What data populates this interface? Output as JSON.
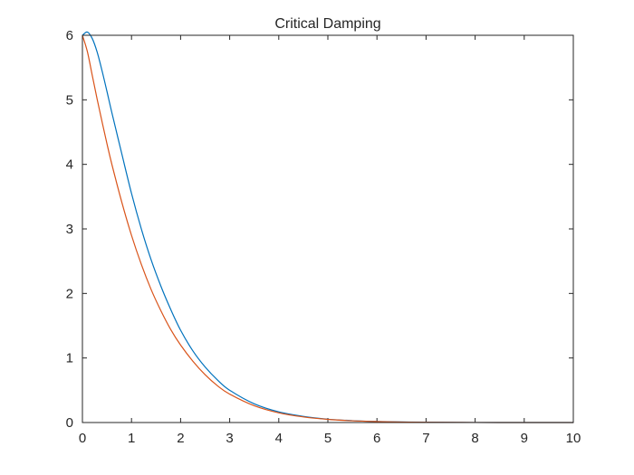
{
  "chart_data": {
    "type": "line",
    "title": "Critical Damping",
    "xlabel": "",
    "ylabel": "",
    "xlim": [
      0,
      10
    ],
    "ylim": [
      0,
      6
    ],
    "xticks": [
      "0",
      "1",
      "2",
      "3",
      "4",
      "5",
      "6",
      "7",
      "8",
      "9",
      "10"
    ],
    "yticks": [
      "0",
      "1",
      "2",
      "3",
      "4",
      "5",
      "6"
    ],
    "grid": false,
    "legend": "none",
    "series": [
      {
        "color": "#0072BD",
        "x": [
          0,
          0.1,
          0.2,
          0.3,
          0.4,
          0.5,
          0.6,
          0.8,
          1.0,
          1.2,
          1.4,
          1.6,
          1.8,
          2.0,
          2.25,
          2.5,
          2.75,
          3.0,
          3.5,
          4.0,
          4.5,
          5.0,
          5.5,
          6.0,
          6.5,
          7.0,
          8.0,
          9.0,
          10.0
        ],
        "y": [
          6.0,
          6.05,
          5.95,
          5.74,
          5.45,
          5.13,
          4.8,
          4.17,
          3.55,
          3.0,
          2.52,
          2.11,
          1.75,
          1.43,
          1.11,
          0.86,
          0.66,
          0.5,
          0.29,
          0.165,
          0.095,
          0.052,
          0.029,
          0.016,
          0.009,
          0.005,
          0.001,
          0.0,
          0.0
        ]
      },
      {
        "color": "#D95319",
        "x": [
          0,
          0.1,
          0.2,
          0.3,
          0.4,
          0.5,
          0.6,
          0.8,
          1.0,
          1.2,
          1.4,
          1.6,
          1.8,
          2.0,
          2.25,
          2.5,
          2.75,
          3.0,
          3.5,
          4.0,
          4.5,
          5.0,
          5.5,
          6.0,
          6.5,
          7.0,
          8.0,
          9.0,
          10.0
        ],
        "y": [
          6.0,
          5.75,
          5.38,
          5.01,
          4.66,
          4.32,
          4.0,
          3.42,
          2.9,
          2.45,
          2.06,
          1.73,
          1.44,
          1.2,
          0.95,
          0.74,
          0.57,
          0.44,
          0.26,
          0.15,
          0.087,
          0.049,
          0.027,
          0.015,
          0.008,
          0.004,
          0.001,
          0.0,
          0.0
        ]
      }
    ]
  }
}
